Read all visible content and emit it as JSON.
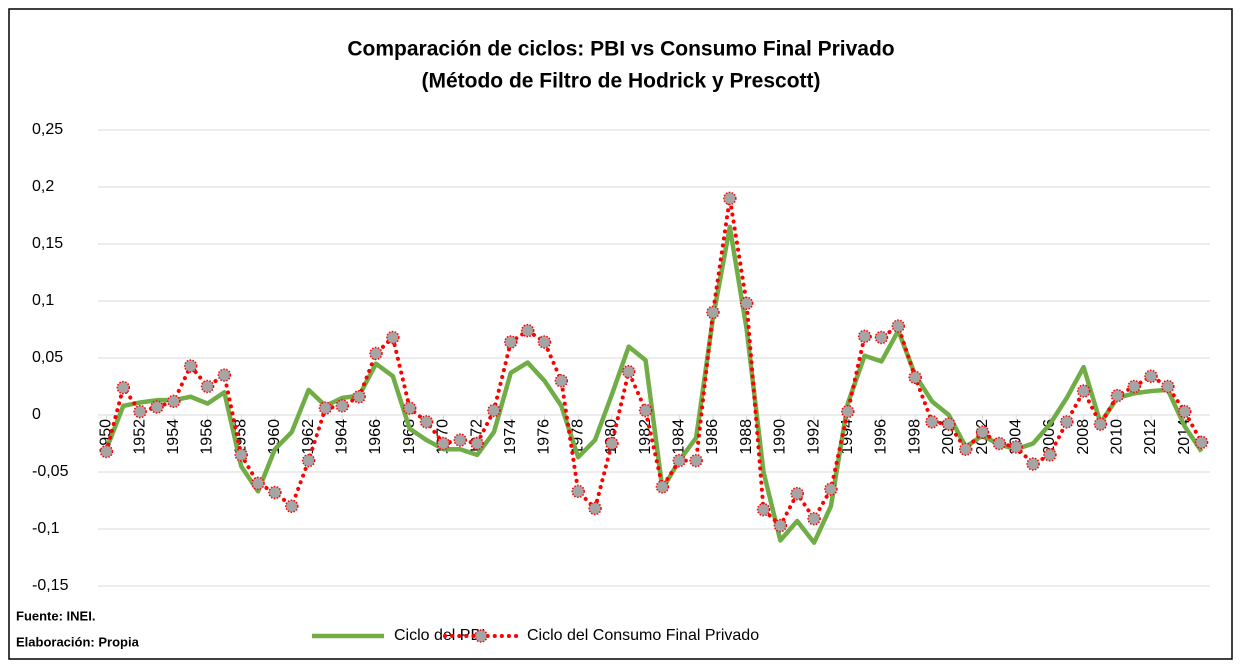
{
  "chart_data": {
    "type": "line",
    "title": "Comparación de ciclos: PBI vs Consumo Final Privado",
    "subtitle": "(Método de Filtro de Hodrick y Prescott)",
    "notes": [
      "Fuente: INEI.",
      "Elaboración: Propia"
    ],
    "x": [
      1950,
      1951,
      1952,
      1953,
      1954,
      1955,
      1956,
      1957,
      1958,
      1959,
      1960,
      1961,
      1962,
      1963,
      1964,
      1965,
      1966,
      1967,
      1968,
      1969,
      1970,
      1971,
      1972,
      1973,
      1974,
      1975,
      1976,
      1977,
      1978,
      1979,
      1980,
      1981,
      1982,
      1983,
      1984,
      1985,
      1986,
      1987,
      1988,
      1989,
      1990,
      1991,
      1992,
      1993,
      1994,
      1995,
      1996,
      1997,
      1998,
      1999,
      2000,
      2001,
      2002,
      2003,
      2004,
      2005,
      2006,
      2007,
      2008,
      2009,
      2010,
      2011,
      2012,
      2013,
      2014,
      2015
    ],
    "series": [
      {
        "name": "Ciclo del PBI",
        "color": "#70ad47",
        "dash": "solid",
        "values": [
          -0.03,
          0.008,
          0.011,
          0.013,
          0.013,
          0.016,
          0.01,
          0.02,
          -0.045,
          -0.067,
          -0.03,
          -0.015,
          0.022,
          0.008,
          0.015,
          0.017,
          0.045,
          0.034,
          -0.012,
          -0.022,
          -0.03,
          -0.03,
          -0.035,
          -0.015,
          0.037,
          0.046,
          0.03,
          0.008,
          -0.037,
          -0.022,
          0.018,
          0.06,
          0.048,
          -0.065,
          -0.04,
          -0.02,
          0.085,
          0.165,
          0.075,
          -0.05,
          -0.11,
          -0.093,
          -0.112,
          -0.08,
          0.01,
          0.052,
          0.047,
          0.074,
          0.035,
          0.012,
          0.0,
          -0.028,
          -0.018,
          -0.026,
          -0.03,
          -0.025,
          -0.008,
          0.015,
          0.042,
          -0.007,
          0.015,
          0.019,
          0.021,
          0.022,
          -0.01,
          -0.032
        ]
      },
      {
        "name": "Ciclo del Consumo Final Privado",
        "color": "#ff0000",
        "dash": "dotted",
        "marker": "circle",
        "marker_color": "#a5a5a5",
        "values": [
          -0.032,
          0.024,
          0.003,
          0.007,
          0.012,
          0.043,
          0.025,
          0.035,
          -0.035,
          -0.06,
          -0.068,
          -0.08,
          -0.04,
          0.006,
          0.008,
          0.016,
          0.054,
          0.068,
          0.006,
          -0.006,
          -0.025,
          -0.022,
          -0.025,
          0.004,
          0.064,
          0.074,
          0.064,
          0.03,
          -0.067,
          -0.082,
          -0.025,
          0.038,
          0.004,
          -0.063,
          -0.04,
          -0.04,
          0.09,
          0.19,
          0.098,
          -0.083,
          -0.097,
          -0.069,
          -0.091,
          -0.065,
          0.003,
          0.069,
          0.068,
          0.078,
          0.033,
          -0.006,
          -0.008,
          -0.03,
          -0.015,
          -0.025,
          -0.028,
          -0.043,
          -0.035,
          -0.006,
          0.021,
          -0.008,
          0.017,
          0.025,
          0.034,
          0.025,
          0.003,
          -0.024
        ]
      }
    ],
    "xlim": [
      1949.5,
      2015.5
    ],
    "xticks": [
      1950,
      1952,
      1954,
      1956,
      1958,
      1960,
      1962,
      1964,
      1966,
      1968,
      1970,
      1972,
      1974,
      1976,
      1978,
      1980,
      1982,
      1984,
      1986,
      1988,
      1990,
      1992,
      1994,
      1996,
      1998,
      2000,
      2002,
      2004,
      2006,
      2008,
      2010,
      2012,
      2014
    ],
    "ylim": [
      -0.15,
      0.25
    ],
    "yticks": [
      {
        "value": -0.15,
        "label": "-0,15"
      },
      {
        "value": -0.1,
        "label": "-0,1"
      },
      {
        "value": -0.05,
        "label": "-0,05"
      },
      0,
      {
        "value": 0.05,
        "label": "0,05"
      },
      {
        "value": 0.1,
        "label": "0,1"
      },
      {
        "value": 0.15,
        "label": "0,15"
      },
      {
        "value": 0.2,
        "label": "0,2"
      },
      {
        "value": 0.25,
        "label": "0,25"
      }
    ],
    "grid": true,
    "legend": "bottom"
  }
}
